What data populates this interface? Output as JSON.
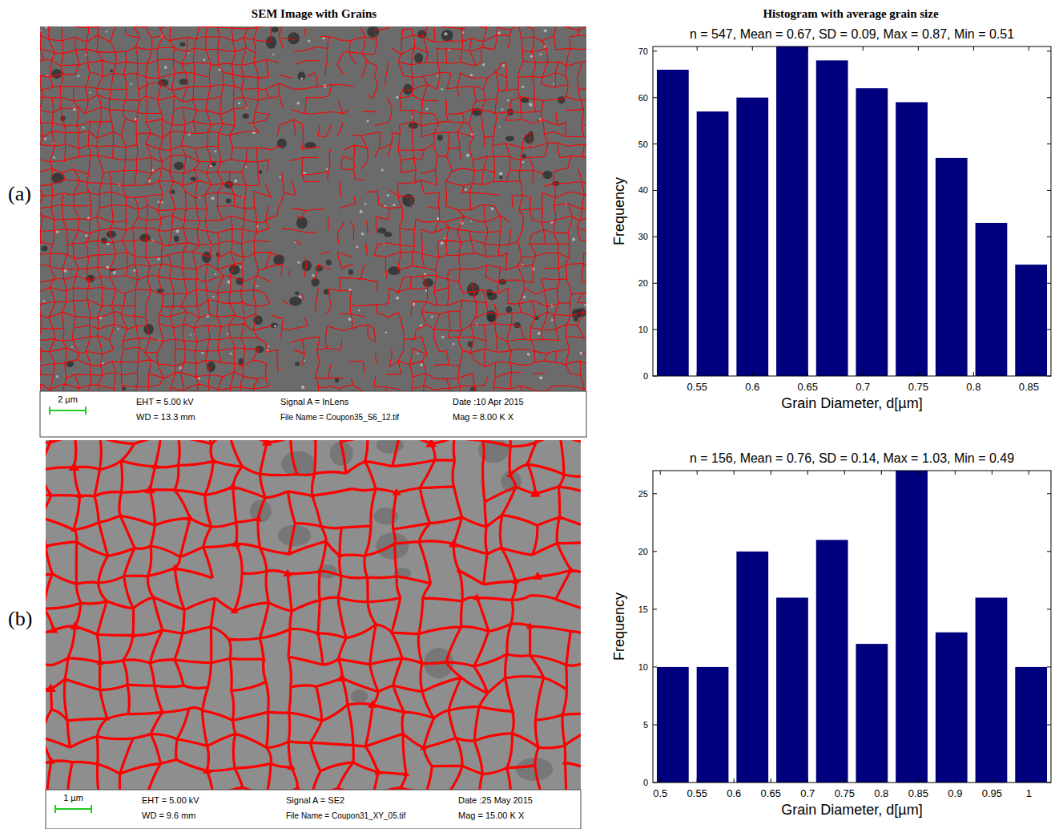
{
  "figure": {
    "column_titles": [
      "SEM Image with Grains",
      "Histogram with average grain size"
    ],
    "panels": [
      {
        "label": "(a)",
        "scale_bar": "2 µm",
        "info": [
          "EHT = 5.00 kV",
          "Signal A = InLens",
          "Date :10 Apr 2015",
          "WD = 13.3 mm",
          "File Name = Coupon35_S6_12.tif",
          "Mag =  8.00 K X"
        ]
      },
      {
        "label": "(b)",
        "scale_bar": "1 µm",
        "info": [
          "EHT = 5.00 kV",
          "Signal A = SE2",
          "Date :25 May 2015",
          "WD = 9.6 mm",
          "File Name = Coupon31_XY_05.tif",
          "Mag = 15.00 K X"
        ]
      }
    ]
  },
  "chart_data": [
    {
      "type": "histogram",
      "title": "n = 547, Mean = 0.67, SD = 0.09, Max = 0.87, Min = 0.51",
      "x_label": "Grain Diameter, d[µm]",
      "y_label": "Frequency",
      "color": "#00007f",
      "bins": [
        0.51,
        0.546,
        0.582,
        0.618,
        0.654,
        0.69,
        0.726,
        0.762,
        0.798,
        0.834,
        0.87
      ],
      "values": [
        66,
        57,
        60,
        71,
        68,
        62,
        59,
        47,
        33,
        24
      ],
      "xlim": [
        0.51,
        0.87
      ],
      "xticks": [
        0.55,
        0.6,
        0.65,
        0.7,
        0.75,
        0.8,
        0.85
      ],
      "ylim": [
        0,
        71
      ],
      "yticks": [
        0,
        10,
        20,
        30,
        40,
        50,
        60,
        70
      ]
    },
    {
      "type": "histogram",
      "title": "n = 156, Mean = 0.76, SD = 0.14, Max = 1.03, Min = 0.49",
      "x_label": "Grain Diameter, d[µm]",
      "y_label": "Frequency",
      "color": "#00007f",
      "bins": [
        0.49,
        0.544,
        0.598,
        0.652,
        0.706,
        0.76,
        0.814,
        0.868,
        0.922,
        0.976,
        1.03
      ],
      "values": [
        10,
        10,
        20,
        16,
        21,
        12,
        27,
        13,
        16,
        10
      ],
      "xlim": [
        0.49,
        1.03
      ],
      "xticks": [
        0.5,
        0.55,
        0.6,
        0.65,
        0.7,
        0.75,
        0.8,
        0.85,
        0.9,
        0.95,
        1
      ],
      "ylim": [
        0,
        27
      ],
      "yticks": [
        0,
        5,
        10,
        15,
        20,
        25
      ]
    }
  ]
}
